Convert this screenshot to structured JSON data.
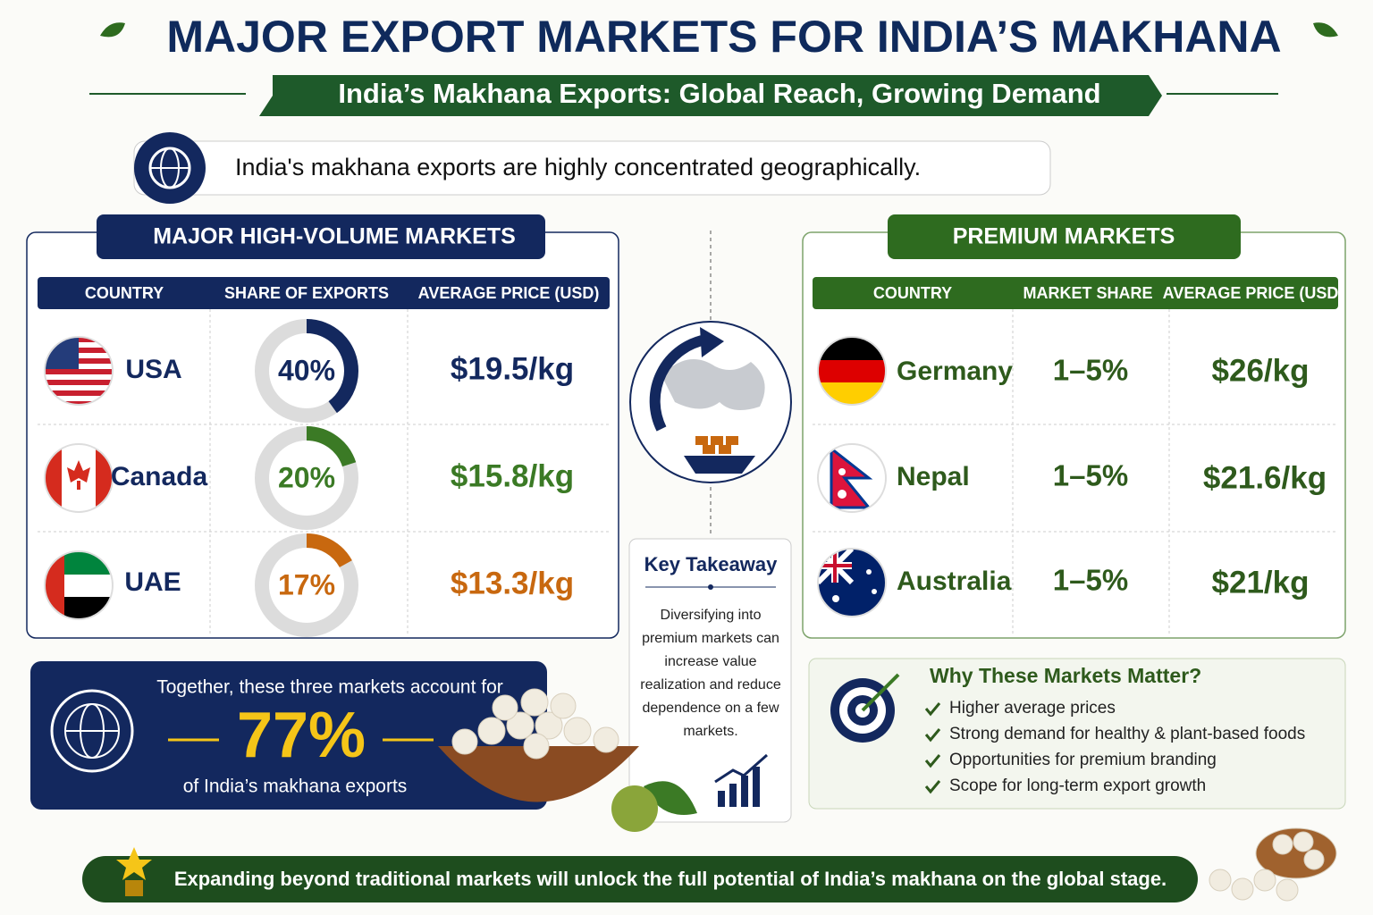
{
  "header": {
    "title": "MAJOR EXPORT MARKETS FOR INDIA’S MAKHANA",
    "subtitle": "India’s Makhana Exports: Global Reach, Growing Demand",
    "intro": "India's makhana exports are highly concentrated geographically."
  },
  "high_volume": {
    "title": "MAJOR HIGH-VOLUME MARKETS",
    "headers": [
      "COUNTRY",
      "SHARE OF EXPORTS",
      "AVERAGE PRICE (USD)"
    ],
    "rows": [
      {
        "country": "USA",
        "share": {
          "value": 40,
          "label": "40%"
        },
        "price": "$19.5/kg",
        "color": "#13285e"
      },
      {
        "country": "Canada",
        "share": {
          "value": 20,
          "label": "20%"
        },
        "price": "$15.8/kg",
        "color": "#3b7a25"
      },
      {
        "country": "UAE",
        "share": {
          "value": 17,
          "label": "17%"
        },
        "price": "$13.3/kg",
        "color": "#c8680f"
      }
    ]
  },
  "premium": {
    "title": "PREMIUM MARKETS",
    "headers": [
      "COUNTRY",
      "MARKET SHARE",
      "AVERAGE PRICE (USD)"
    ],
    "rows": [
      {
        "country": "Germany",
        "share": "1–5%",
        "price": "$26/kg"
      },
      {
        "country": "Nepal",
        "share": "1–5%",
        "price": "$21.6/kg"
      },
      {
        "country": "Australia",
        "share": "1–5%",
        "price": "$21/kg"
      }
    ]
  },
  "takeaway": {
    "title": "Key Takeaway",
    "text": "Diversifying into premium markets can increase value realization and reduce dependence on a few markets."
  },
  "summary": {
    "lead": "Together, these three markets account for",
    "value": "77%",
    "tail": "of India’s makhana exports"
  },
  "why": {
    "title": "Why These Markets Matter?",
    "items": [
      "Higher average prices",
      "Strong demand for healthy & plant-based foods",
      "Opportunities for premium branding",
      "Scope for long-term export growth"
    ]
  },
  "footer": "Expanding beyond traditional markets will unlock the full potential of India’s makhana on the global stage."
}
